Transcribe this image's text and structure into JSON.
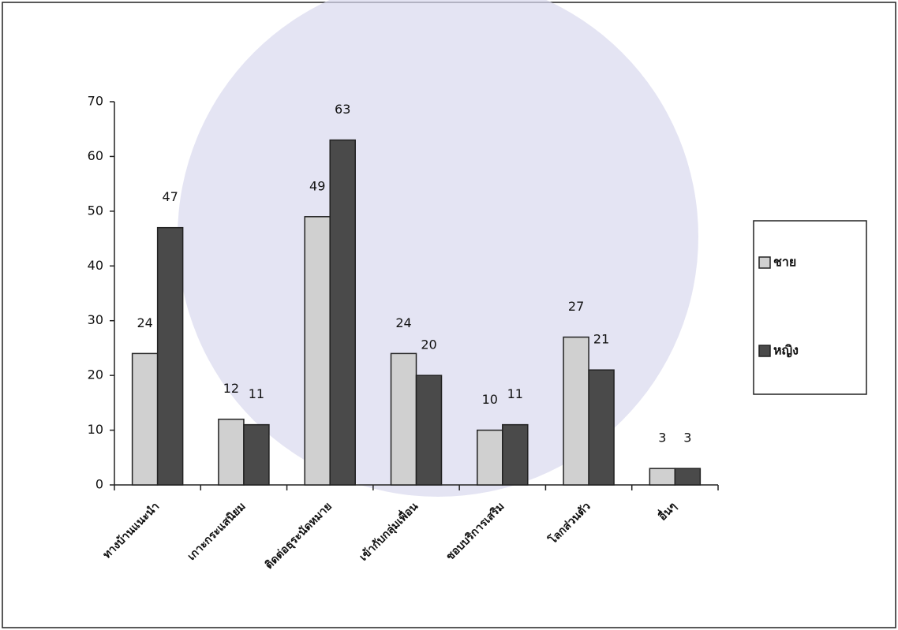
{
  "chart_data": {
    "type": "bar",
    "categories": [
      "ทางบ้านแนะนำ",
      "เกาะกระแสนิยม",
      "ติดต่อธุระนัดหมาย",
      "เข้ากับกลุ่มเพื่อน",
      "ชอบบริการเสริม",
      "โลกส่วนตัว",
      "อื่นๆ"
    ],
    "series": [
      {
        "name": "ชาย",
        "color": "#d0d0d0",
        "values": [
          24,
          12,
          49,
          24,
          10,
          27,
          3
        ]
      },
      {
        "name": "หญิง",
        "color": "#4a4a4a",
        "values": [
          47,
          11,
          63,
          20,
          11,
          21,
          3
        ]
      }
    ],
    "ylim": [
      0,
      70
    ],
    "yticks": [
      0,
      10,
      20,
      30,
      40,
      50,
      60,
      70
    ],
    "legend": "right"
  }
}
